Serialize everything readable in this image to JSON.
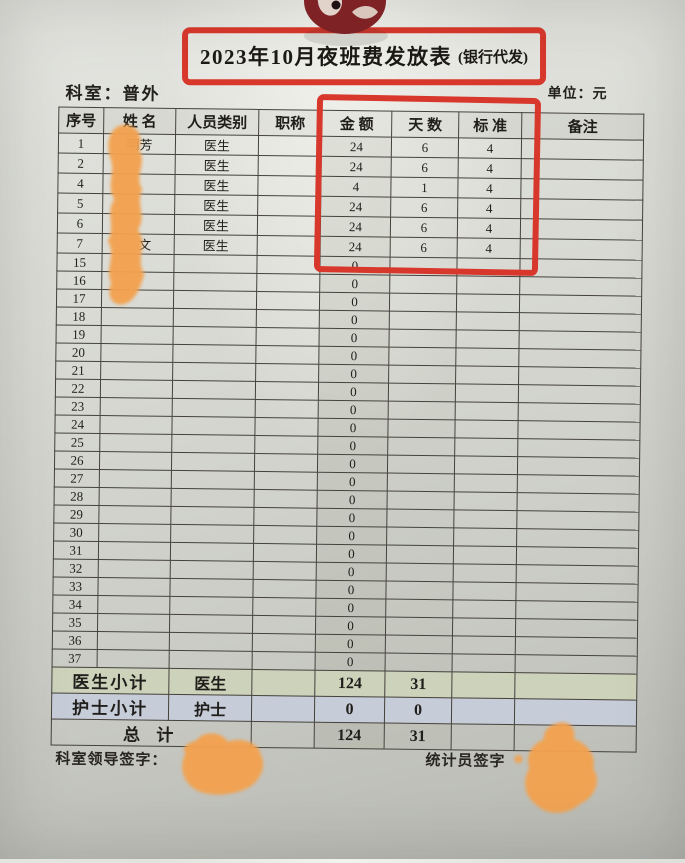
{
  "photo": {
    "annotation_color": "#d8372c",
    "redaction_color": "#f3a24f",
    "magnet": "red-round-magnet"
  },
  "header": {
    "title_main": "2023年10月夜班费发放表",
    "title_paren": "(银行代发)",
    "department_label": "科室：普外",
    "unit_label": "单位：元"
  },
  "table": {
    "headers": [
      "序号",
      "姓 名",
      "人员类别",
      "职称",
      "金 额",
      "天 数",
      "标 准",
      "备注"
    ],
    "rows": [
      {
        "no": "1",
        "name": "明芳",
        "category": "医生",
        "title": "",
        "amount": "24",
        "days": "6",
        "standard": "4",
        "remark": ""
      },
      {
        "no": "2",
        "name": "",
        "category": "医生",
        "title": "",
        "amount": "24",
        "days": "6",
        "standard": "4",
        "remark": ""
      },
      {
        "no": "4",
        "name": "",
        "category": "医生",
        "title": "",
        "amount": "4",
        "days": "1",
        "standard": "4",
        "remark": ""
      },
      {
        "no": "5",
        "name": "",
        "category": "医生",
        "title": "",
        "amount": "24",
        "days": "6",
        "standard": "4",
        "remark": ""
      },
      {
        "no": "6",
        "name": "",
        "category": "医生",
        "title": "",
        "amount": "24",
        "days": "6",
        "standard": "4",
        "remark": ""
      },
      {
        "no": "7",
        "name": "　文",
        "category": "医生",
        "title": "",
        "amount": "24",
        "days": "6",
        "standard": "4",
        "remark": ""
      },
      {
        "no": "15",
        "name": "",
        "category": "",
        "title": "",
        "amount": "0",
        "days": "",
        "standard": "",
        "remark": ""
      },
      {
        "no": "16",
        "name": "",
        "category": "",
        "title": "",
        "amount": "0",
        "days": "",
        "standard": "",
        "remark": ""
      },
      {
        "no": "17",
        "name": "",
        "category": "",
        "title": "",
        "amount": "0",
        "days": "",
        "standard": "",
        "remark": ""
      },
      {
        "no": "18",
        "name": "",
        "category": "",
        "title": "",
        "amount": "0",
        "days": "",
        "standard": "",
        "remark": ""
      },
      {
        "no": "19",
        "name": "",
        "category": "",
        "title": "",
        "amount": "0",
        "days": "",
        "standard": "",
        "remark": ""
      },
      {
        "no": "20",
        "name": "",
        "category": "",
        "title": "",
        "amount": "0",
        "days": "",
        "standard": "",
        "remark": ""
      },
      {
        "no": "21",
        "name": "",
        "category": "",
        "title": "",
        "amount": "0",
        "days": "",
        "standard": "",
        "remark": ""
      },
      {
        "no": "22",
        "name": "",
        "category": "",
        "title": "",
        "amount": "0",
        "days": "",
        "standard": "",
        "remark": ""
      },
      {
        "no": "23",
        "name": "",
        "category": "",
        "title": "",
        "amount": "0",
        "days": "",
        "standard": "",
        "remark": ""
      },
      {
        "no": "24",
        "name": "",
        "category": "",
        "title": "",
        "amount": "0",
        "days": "",
        "standard": "",
        "remark": ""
      },
      {
        "no": "25",
        "name": "",
        "category": "",
        "title": "",
        "amount": "0",
        "days": "",
        "standard": "",
        "remark": ""
      },
      {
        "no": "26",
        "name": "",
        "category": "",
        "title": "",
        "amount": "0",
        "days": "",
        "standard": "",
        "remark": ""
      },
      {
        "no": "27",
        "name": "",
        "category": "",
        "title": "",
        "amount": "0",
        "days": "",
        "standard": "",
        "remark": ""
      },
      {
        "no": "28",
        "name": "",
        "category": "",
        "title": "",
        "amount": "0",
        "days": "",
        "standard": "",
        "remark": ""
      },
      {
        "no": "29",
        "name": "",
        "category": "",
        "title": "",
        "amount": "0",
        "days": "",
        "standard": "",
        "remark": ""
      },
      {
        "no": "30",
        "name": "",
        "category": "",
        "title": "",
        "amount": "0",
        "days": "",
        "standard": "",
        "remark": ""
      },
      {
        "no": "31",
        "name": "",
        "category": "",
        "title": "",
        "amount": "0",
        "days": "",
        "standard": "",
        "remark": ""
      },
      {
        "no": "32",
        "name": "",
        "category": "",
        "title": "",
        "amount": "0",
        "days": "",
        "standard": "",
        "remark": ""
      },
      {
        "no": "33",
        "name": "",
        "category": "",
        "title": "",
        "amount": "0",
        "days": "",
        "standard": "",
        "remark": ""
      },
      {
        "no": "34",
        "name": "",
        "category": "",
        "title": "",
        "amount": "0",
        "days": "",
        "standard": "",
        "remark": ""
      },
      {
        "no": "35",
        "name": "",
        "category": "",
        "title": "",
        "amount": "0",
        "days": "",
        "standard": "",
        "remark": ""
      },
      {
        "no": "36",
        "name": "",
        "category": "",
        "title": "",
        "amount": "0",
        "days": "",
        "standard": "",
        "remark": ""
      },
      {
        "no": "37",
        "name": "",
        "category": "",
        "title": "",
        "amount": "0",
        "days": "",
        "standard": "",
        "remark": ""
      }
    ],
    "summary": [
      {
        "label": "医生小计",
        "span": 2,
        "category": "医生",
        "amount": "124",
        "days": "31",
        "style": "sum-doctor"
      },
      {
        "label": "护士小计",
        "span": 2,
        "category": "护士",
        "amount": "0",
        "days": "0",
        "style": "sum-nurse"
      },
      {
        "label": "总  计",
        "span": 3,
        "category": "",
        "amount": "124",
        "days": "31",
        "style": "sum-total"
      }
    ],
    "doctor_total_amount": "124",
    "doctor_total_days": "31",
    "nurse_total_amount": "0",
    "nurse_total_days": "0",
    "grand_total_amount": "124",
    "grand_total_days": "31"
  },
  "footer": {
    "left_signature_label": "科室领导签字：",
    "right_signature_label": "统计员签字"
  }
}
